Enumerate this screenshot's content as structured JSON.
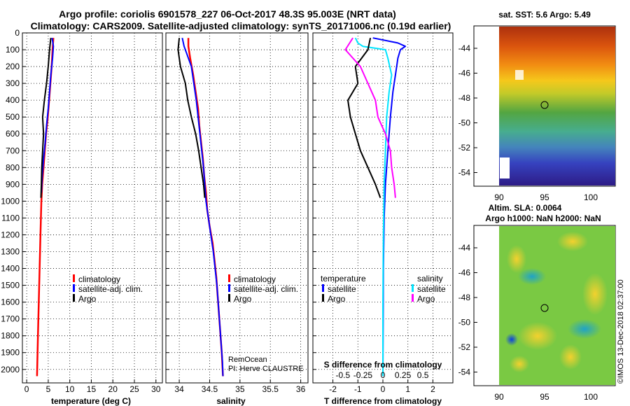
{
  "header": {
    "line1": "Argo profile: coriolis 6901578_227 06-Oct-2017 48.3S 95.003E (NRT data)",
    "line2": "Climatology: CARS2009. Satellite-adjusted climatology: synTS_20171006.nc (0.19d earlier)"
  },
  "colors": {
    "climatology": "#ff0000",
    "satellite": "#0000ff",
    "argo": "#000000",
    "sat_salinity": "#00e5ff",
    "argo_salinity": "#ff00ff"
  },
  "depth_axis": {
    "ylim": [
      0,
      2080
    ],
    "ticks": [
      "0",
      "100",
      "200",
      "300",
      "400",
      "500",
      "600",
      "700",
      "800",
      "900",
      "1000",
      "1100",
      "1200",
      "1300",
      "1400",
      "1500",
      "1600",
      "1700",
      "1800",
      "1900",
      "2000"
    ]
  },
  "chart_data": [
    {
      "type": "line",
      "id": "temperature",
      "xlabel": "temperature (deg C)",
      "ylabel": "depth",
      "xlim": [
        -1,
        31.5
      ],
      "xticks": [
        0,
        5,
        10,
        15,
        20,
        25,
        30
      ],
      "xticklabels": [
        "0",
        "5",
        "10",
        "15",
        "20",
        "25",
        "30"
      ],
      "legend": [
        "climatology",
        "satellite-adj. clim.",
        "Argo"
      ],
      "series": [
        {
          "name": "climatology",
          "points": [
            [
              6.2,
              30
            ],
            [
              6.0,
              100
            ],
            [
              5.8,
              200
            ],
            [
              5.5,
              300
            ],
            [
              5.2,
              400
            ],
            [
              4.9,
              500
            ],
            [
              4.5,
              600
            ],
            [
              4.2,
              700
            ],
            [
              3.9,
              800
            ],
            [
              3.6,
              900
            ],
            [
              3.4,
              1000
            ],
            [
              3.2,
              1200
            ],
            [
              3.0,
              1400
            ],
            [
              2.8,
              1600
            ],
            [
              2.6,
              1800
            ],
            [
              2.4,
              2040
            ]
          ]
        },
        {
          "name": "satellite-adj. clim.",
          "points": [
            [
              5.9,
              30
            ],
            [
              6.2,
              80
            ],
            [
              6.0,
              150
            ],
            [
              5.6,
              250
            ],
            [
              5.3,
              350
            ],
            [
              5.0,
              450
            ],
            [
              4.6,
              550
            ],
            [
              4.3,
              650
            ],
            [
              3.9,
              750
            ],
            [
              3.6,
              850
            ],
            [
              3.4,
              950
            ]
          ]
        },
        {
          "name": "Argo",
          "points": [
            [
              5.6,
              30
            ],
            [
              5.3,
              100
            ],
            [
              5.0,
              200
            ],
            [
              4.6,
              300
            ],
            [
              4.1,
              400
            ],
            [
              3.7,
              500
            ],
            [
              3.9,
              600
            ],
            [
              3.7,
              700
            ],
            [
              3.5,
              800
            ],
            [
              3.4,
              900
            ],
            [
              3.3,
              980
            ]
          ]
        }
      ]
    },
    {
      "type": "line",
      "id": "salinity",
      "xlabel": "salinity",
      "ylabel": "depth",
      "xlim": [
        33.78,
        36.12
      ],
      "xticks": [
        34,
        34.5,
        35,
        35.5,
        36
      ],
      "xticklabels": [
        "34",
        "34.5",
        "35",
        "35.5",
        "36"
      ],
      "legend": [
        "climatology",
        "satellite-adj. clim.",
        "Argo"
      ],
      "annotations": [
        "RemOcean",
        "PI: Herve CLAUSTRE"
      ],
      "series": [
        {
          "name": "climatology",
          "points": [
            [
              34.15,
              30
            ],
            [
              34.15,
              80
            ],
            [
              34.18,
              150
            ],
            [
              34.23,
              250
            ],
            [
              34.27,
              350
            ],
            [
              34.31,
              450
            ],
            [
              34.33,
              550
            ],
            [
              34.36,
              650
            ],
            [
              34.39,
              750
            ],
            [
              34.41,
              850
            ],
            [
              34.44,
              950
            ],
            [
              34.46,
              1050
            ],
            [
              34.5,
              1150
            ],
            [
              34.55,
              1250
            ],
            [
              34.58,
              1350
            ],
            [
              34.61,
              1450
            ],
            [
              34.64,
              1600
            ],
            [
              34.67,
              1750
            ],
            [
              34.7,
              1900
            ],
            [
              34.72,
              2040
            ]
          ]
        },
        {
          "name": "satellite-adj. clim.",
          "points": [
            [
              34.05,
              30
            ],
            [
              34.08,
              80
            ],
            [
              34.12,
              120
            ],
            [
              34.2,
              200
            ],
            [
              34.24,
              300
            ],
            [
              34.28,
              400
            ],
            [
              34.31,
              500
            ],
            [
              34.34,
              600
            ],
            [
              34.37,
              700
            ],
            [
              34.4,
              800
            ],
            [
              34.42,
              900
            ],
            [
              34.44,
              1000
            ],
            [
              34.48,
              1100
            ],
            [
              34.52,
              1200
            ],
            [
              34.56,
              1300
            ],
            [
              34.59,
              1400
            ],
            [
              34.62,
              1500
            ],
            [
              34.65,
              1650
            ],
            [
              34.68,
              1800
            ],
            [
              34.71,
              1950
            ],
            [
              34.72,
              2040
            ]
          ]
        },
        {
          "name": "Argo",
          "points": [
            [
              34.0,
              30
            ],
            [
              33.98,
              100
            ],
            [
              34.02,
              200
            ],
            [
              34.1,
              300
            ],
            [
              34.14,
              400
            ],
            [
              34.2,
              500
            ],
            [
              34.27,
              600
            ],
            [
              34.32,
              700
            ],
            [
              34.36,
              800
            ],
            [
              34.4,
              900
            ],
            [
              34.42,
              980
            ]
          ]
        }
      ]
    },
    {
      "type": "line",
      "id": "differences",
      "xlabel": "T difference from climatology",
      "xlabel2": "S difference from climatology",
      "ylabel": "depth",
      "xlim": [
        -2.8,
        2.8
      ],
      "xticks": [
        -2,
        -1,
        0,
        1,
        2
      ],
      "xticklabels": [
        "-2",
        "-1",
        "0",
        "1",
        "2"
      ],
      "s_xticklabels": [
        "-0.5",
        "-0.25",
        "0",
        "0.25",
        "0.5"
      ],
      "legend_titles": [
        "temperature",
        "salinity"
      ],
      "legend": [
        "satellite",
        "Argo",
        "satellite",
        "Argo"
      ],
      "series": [
        {
          "name": "temperature satellite",
          "points": [
            [
              -0.4,
              30
            ],
            [
              0.6,
              60
            ],
            [
              0.9,
              80
            ],
            [
              0.7,
              100
            ],
            [
              0.6,
              150
            ],
            [
              0.5,
              250
            ],
            [
              0.4,
              350
            ],
            [
              0.3,
              500
            ],
            [
              0.2,
              700
            ],
            [
              0.1,
              900
            ],
            [
              0.05,
              1100
            ],
            [
              0.02,
              1400
            ],
            [
              0.0,
              2040
            ]
          ]
        },
        {
          "name": "salinity satellite",
          "points": [
            [
              -1.1,
              30
            ],
            [
              -1.0,
              60
            ],
            [
              -0.8,
              80
            ],
            [
              0.1,
              100
            ],
            [
              0.2,
              150
            ],
            [
              0.35,
              250
            ],
            [
              0.25,
              350
            ],
            [
              0.15,
              500
            ],
            [
              0.1,
              700
            ],
            [
              0.05,
              900
            ],
            [
              0.02,
              1200
            ],
            [
              0.0,
              1600
            ],
            [
              0.0,
              2040
            ]
          ]
        },
        {
          "name": "temperature Argo",
          "points": [
            [
              -0.5,
              30
            ],
            [
              -0.6,
              100
            ],
            [
              -1.1,
              200
            ],
            [
              -1.0,
              300
            ],
            [
              -1.4,
              400
            ],
            [
              -1.3,
              500
            ],
            [
              -1.1,
              600
            ],
            [
              -0.9,
              700
            ],
            [
              -0.6,
              800
            ],
            [
              -0.3,
              900
            ],
            [
              -0.1,
              980
            ]
          ]
        },
        {
          "name": "salinity Argo",
          "points": [
            [
              -1.2,
              30
            ],
            [
              -1.5,
              100
            ],
            [
              -0.9,
              200
            ],
            [
              -0.6,
              300
            ],
            [
              -0.3,
              400
            ],
            [
              -0.2,
              500
            ],
            [
              0.1,
              600
            ],
            [
              0.3,
              700
            ],
            [
              0.35,
              800
            ],
            [
              0.45,
              900
            ],
            [
              0.5,
              980
            ]
          ]
        }
      ]
    }
  ],
  "maps": {
    "sst": {
      "title": "sat. SST: 5.6 Argo: 5.49",
      "yticks": [
        "-44",
        "-46",
        "-48",
        "-50",
        "-52",
        "-54"
      ],
      "xticks": [
        "90",
        "95",
        "100"
      ]
    },
    "sla": {
      "title_line1": "Altim. SLA: 0.0064",
      "title_line2": "Argo h1000: NaN h2000: NaN",
      "yticks": [
        "-44",
        "-46",
        "-48",
        "-50",
        "-52",
        "-54"
      ],
      "xticks": [
        "90",
        "95",
        "100"
      ]
    }
  },
  "credit": "©IMOS 13-Dec-2018 02:37:00"
}
